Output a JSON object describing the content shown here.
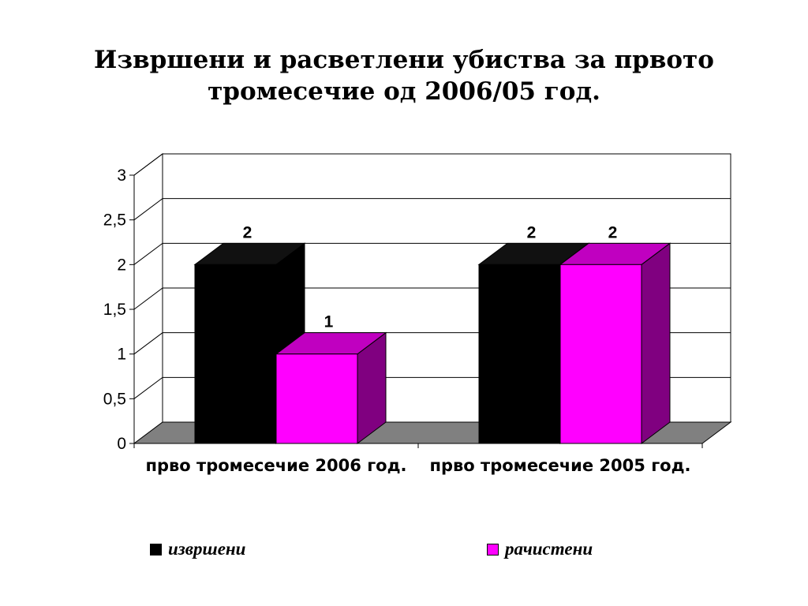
{
  "title_lines": [
    "Извршени и расветлени убиства за првото",
    "тромесечие од 2006/05 год."
  ],
  "colors": {
    "series0_front": "#000000",
    "series0_top": "#111111",
    "series0_side": "#000000",
    "series1_front": "#ff00ff",
    "series1_top": "#c000c0",
    "series1_side": "#800080",
    "floor": "#808080"
  },
  "chart_data": {
    "type": "bar",
    "categories": [
      "прво тромесечие 2006 год.",
      "прво тромесечие 2005 год."
    ],
    "series": [
      {
        "name": "извршени",
        "values": [
          2,
          2
        ]
      },
      {
        "name": "рачистени",
        "values": [
          1,
          2
        ]
      }
    ],
    "y_ticks": [
      "0",
      "0,5",
      "1",
      "1,5",
      "2",
      "2,5",
      "3"
    ],
    "ylim": [
      0,
      3
    ],
    "grid": true,
    "data_labels": true,
    "legend": "bottom",
    "style": "3d-clustered-column"
  }
}
